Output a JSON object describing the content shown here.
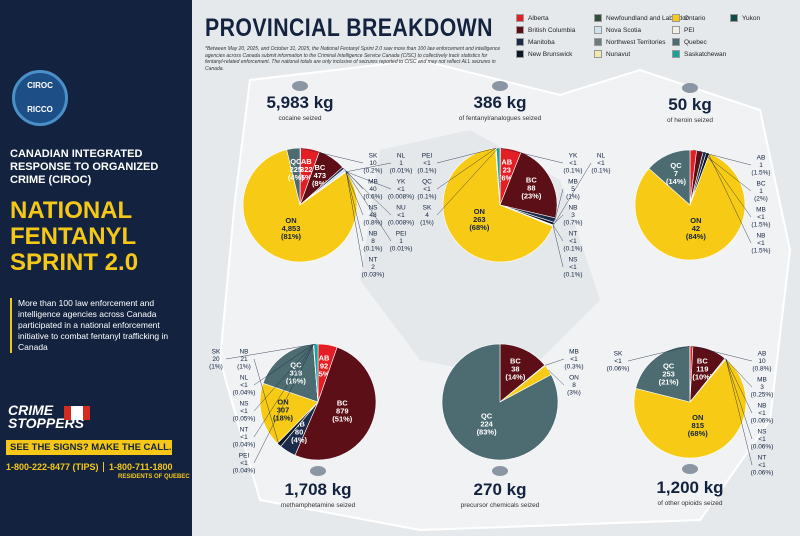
{
  "sidebar": {
    "logo_top": "CIROC",
    "logo_bottom": "RICCO",
    "org": "CANADIAN INTEGRATED RESPONSE TO ORGANIZED CRIME (CIROC)",
    "title": "NATIONAL FENTANYL SPRINT 2.0",
    "description": "More than 100 law enforcement and intelligence agencies across Canada participated in a national enforcement initiative to combat fentanyl trafficking in Canada",
    "crime_stoppers": "CRIME STOPPERS",
    "slogan": "SEE THE SIGNS? MAKE THE CALL.",
    "phone_tips": "1-800-222-8477 (TIPS)",
    "phone_quebec": "1-800-711-1800",
    "quebec_note": "RESIDENTS OF QUEBEC"
  },
  "header": {
    "title": "PROVINCIAL BREAKDOWN",
    "note": "*Between May 20, 2025, and October 31, 2025, the National Fentanyl Sprint 2.0 saw more than 100 law enforcement and intelligence agencies across Canada submit information to the Criminal Intelligence Service Canada (CISC) to collectively track statistics for fentanyl-related enforcement. The national totals are only inclusive of seizures reported to CISC and may not reflect ALL seizures in Canada."
  },
  "legend": [
    {
      "name": "Alberta",
      "color": "#e31e24"
    },
    {
      "name": "British Columbia",
      "color": "#5c0f16"
    },
    {
      "name": "Manitoba",
      "color": "#1c2b4a"
    },
    {
      "name": "New Brunswick",
      "color": "#0c1626"
    },
    {
      "name": "Newfoundland and Labrador",
      "color": "#2f4f3a"
    },
    {
      "name": "Nova Scotia",
      "color": "#cfe3ef"
    },
    {
      "name": "Northwest Territories",
      "color": "#6e7b7c"
    },
    {
      "name": "Nunavut",
      "color": "#f4e6b0"
    },
    {
      "name": "Ontario",
      "color": "#f7cb15"
    },
    {
      "name": "PEI",
      "color": "#f2efe4"
    },
    {
      "name": "Quebec",
      "color": "#4c6c71"
    },
    {
      "name": "Saskatchewan",
      "color": "#17a398"
    },
    {
      "name": "Yukon",
      "color": "#0f4c4c"
    }
  ],
  "chart_data": [
    {
      "type": "pie",
      "title": "5,983 kg",
      "subtitle": "cocaine seized",
      "categories": [
        "SK",
        "AB",
        "BC",
        "MB",
        "NS",
        "NB",
        "NT",
        "NL",
        "YK",
        "NU",
        "PEI",
        "ON",
        "QC"
      ],
      "values": [
        10,
        322,
        473,
        40,
        48,
        8,
        2,
        1,
        0.5,
        0.5,
        1,
        4853,
        225
      ],
      "value_labels": [
        "10",
        "322",
        "473",
        "40",
        "48",
        "8",
        "2",
        "1",
        "<1",
        "<1",
        "1",
        "4,853",
        "225"
      ],
      "percent_labels": [
        "(0.2%)",
        "(5%)",
        "(8%)",
        "(0.6%)",
        "(0.8%)",
        "(0.1%)",
        "(0.03%)",
        "(0.01%)",
        "(0.008%)",
        "(0.008%)",
        "(0.01%)",
        "(81%)",
        "(4%)"
      ],
      "colors": [
        "#17a398",
        "#e31e24",
        "#5c0f16",
        "#1c2b4a",
        "#cfe3ef",
        "#0c1626",
        "#6e7b7c",
        "#2f4f3a",
        "#0f4c4c",
        "#f4e6b0",
        "#f2efe4",
        "#f7cb15",
        "#4c6c71"
      ]
    },
    {
      "type": "pie",
      "title": "386 kg",
      "subtitle": "of fentanyl/analogues seized",
      "categories": [
        "YK",
        "AB",
        "BC",
        "MB",
        "NB",
        "NT",
        "NS",
        "NL",
        "ON",
        "PEI",
        "QC",
        "SK"
      ],
      "values": [
        0.5,
        23,
        88,
        5,
        3,
        0.5,
        0.5,
        0.5,
        263,
        0.5,
        0.5,
        4
      ],
      "value_labels": [
        "<1",
        "23",
        "88",
        "5",
        "3",
        "<1",
        "<1",
        "<1",
        "263",
        "<1",
        "<1",
        "4"
      ],
      "percent_labels": [
        "(0.1%)",
        "(6%)",
        "(23%)",
        "(1%)",
        "(0.7%)",
        "(0.1%)",
        "(0.1%)",
        "(0.1%)",
        "(68%)",
        "(0.1%)",
        "(0.1%)",
        "(1%)"
      ],
      "colors": [
        "#0f4c4c",
        "#e31e24",
        "#5c0f16",
        "#1c2b4a",
        "#0c1626",
        "#6e7b7c",
        "#cfe3ef",
        "#2f4f3a",
        "#f7cb15",
        "#f2efe4",
        "#4c6c71",
        "#17a398"
      ]
    },
    {
      "type": "pie",
      "title": "50 kg",
      "subtitle": "of heroin seized",
      "categories": [
        "AB",
        "BC",
        "MB",
        "NB",
        "ON",
        "QC"
      ],
      "values": [
        1,
        1,
        0.5,
        0.5,
        42,
        7
      ],
      "value_labels": [
        "1",
        "1",
        "<1",
        "<1",
        "42",
        "7"
      ],
      "percent_labels": [
        "(1.5%)",
        "(2%)",
        "(1.5%)",
        "(1.5%)",
        "(84%)",
        "(14%)"
      ],
      "colors": [
        "#e31e24",
        "#5c0f16",
        "#1c2b4a",
        "#0c1626",
        "#f7cb15",
        "#4c6c71"
      ]
    },
    {
      "type": "pie",
      "title": "1,708 kg",
      "subtitle": "methamphetamine seized",
      "categories": [
        "AB",
        "BC",
        "MB",
        "NB",
        "ON",
        "QC",
        "NL",
        "NS",
        "NT",
        "PEI",
        "SK"
      ],
      "values": [
        92,
        879,
        80,
        21,
        307,
        318,
        0.5,
        0.5,
        0.5,
        0.5,
        20
      ],
      "value_labels": [
        "92",
        "879",
        "80",
        "21",
        "307",
        "318",
        "<1",
        "<1",
        "<1",
        "<1",
        "20"
      ],
      "percent_labels": [
        "(5%)",
        "(51%)",
        "(4%)",
        "(1%)",
        "(18%)",
        "(19%)",
        "(0.04%)",
        "(0.05%)",
        "(0.04%)",
        "(0.04%)",
        "(1%)"
      ],
      "colors": [
        "#e31e24",
        "#5c0f16",
        "#1c2b4a",
        "#0c1626",
        "#f7cb15",
        "#4c6c71",
        "#2f4f3a",
        "#cfe3ef",
        "#6e7b7c",
        "#f2efe4",
        "#17a398"
      ]
    },
    {
      "type": "pie",
      "title": "270 kg",
      "subtitle": "precursor chemicals seized",
      "categories": [
        "BC",
        "MB",
        "ON",
        "QC"
      ],
      "values": [
        38,
        0.5,
        8,
        224
      ],
      "value_labels": [
        "38",
        "<1",
        "8",
        "224"
      ],
      "percent_labels": [
        "(14%)",
        "(0.3%)",
        "(3%)",
        "(83%)"
      ],
      "colors": [
        "#5c0f16",
        "#1c2b4a",
        "#f7cb15",
        "#4c6c71"
      ]
    },
    {
      "type": "pie",
      "title": "1,200 kg",
      "subtitle": "of other opioids seized",
      "categories": [
        "AB",
        "BC",
        "MB",
        "NB",
        "NS",
        "NT",
        "ON",
        "QC",
        "SK"
      ],
      "values": [
        10,
        119,
        3,
        0.5,
        0.5,
        0.5,
        815,
        253,
        0.5
      ],
      "value_labels": [
        "10",
        "119",
        "3",
        "<1",
        "<1",
        "<1",
        "815",
        "253",
        "<1"
      ],
      "percent_labels": [
        "(0.8%)",
        "(10%)",
        "(0.25%)",
        "(0.06%)",
        "(0.06%)",
        "(0.06%)",
        "(68%)",
        "(21%)",
        "(0.06%)"
      ],
      "colors": [
        "#e31e24",
        "#5c0f16",
        "#1c2b4a",
        "#0c1626",
        "#cfe3ef",
        "#6e7b7c",
        "#f7cb15",
        "#4c6c71",
        "#17a398"
      ]
    }
  ]
}
